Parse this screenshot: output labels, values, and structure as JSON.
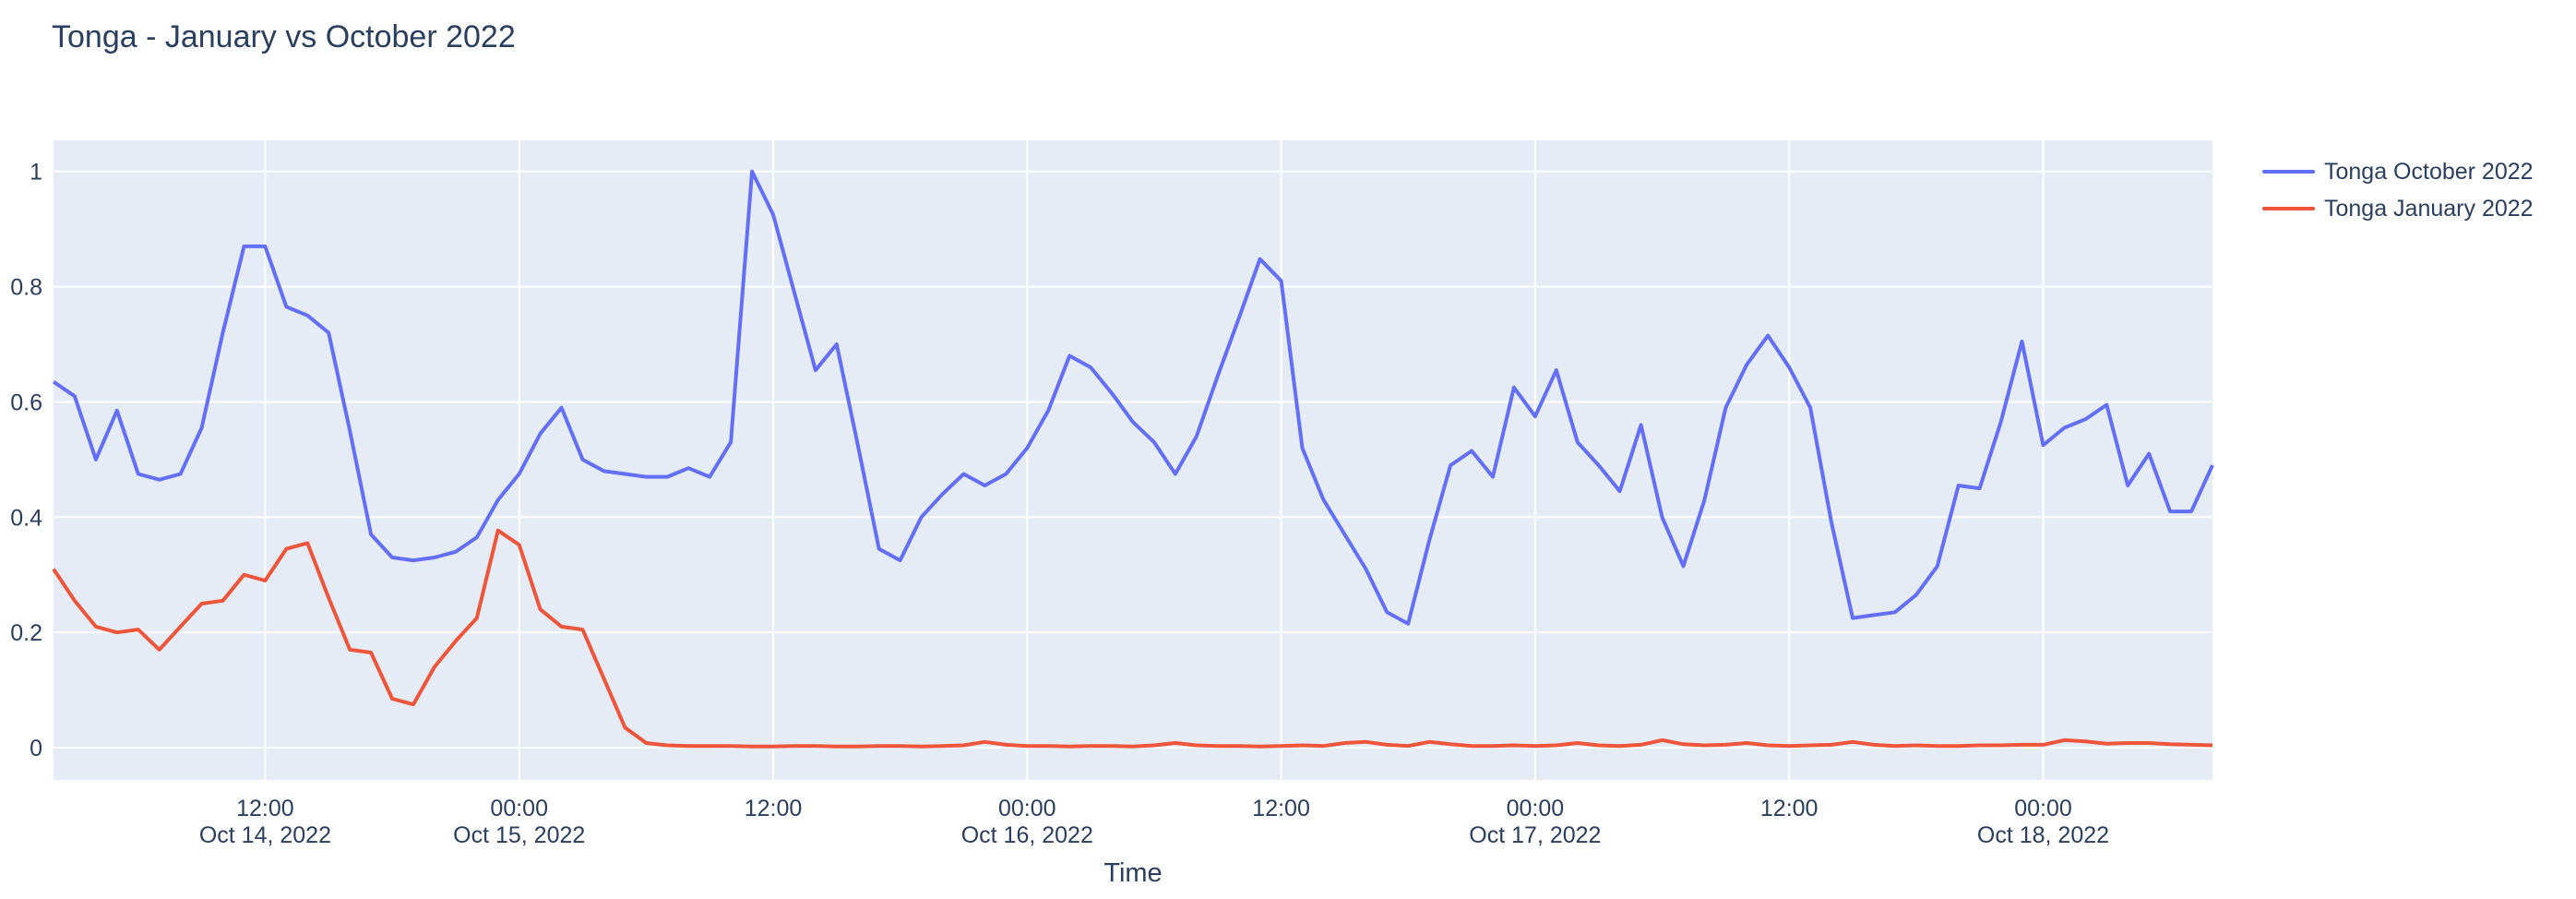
{
  "title": "Tonga - January vs October 2022",
  "colors": {
    "paper_bg": "#ffffff",
    "plot_bg": "#e5ecf6",
    "grid": "#ffffff",
    "text": "#2a3f5f",
    "series_october": "#636efa",
    "series_january": "#ef553b"
  },
  "chart_data": {
    "type": "line",
    "title": "Tonga - January vs October 2022",
    "xlabel": "Time",
    "ylabel": "",
    "x_start": "2022-10-14 02:00",
    "x_step_hours": 1,
    "x_range_hours": [
      0,
      102
    ],
    "ylim": [
      -0.056,
      1.054
    ],
    "grid": true,
    "legend_position": "top-right-outside",
    "y_ticks": [
      {
        "value": 0,
        "label": "0"
      },
      {
        "value": 0.2,
        "label": "0.2"
      },
      {
        "value": 0.4,
        "label": "0.4"
      },
      {
        "value": 0.6,
        "label": "0.6"
      },
      {
        "value": 0.8,
        "label": "0.8"
      },
      {
        "value": 1,
        "label": "1"
      }
    ],
    "x_ticks": [
      {
        "hour": 10,
        "time": "12:00",
        "date": "Oct 14, 2022"
      },
      {
        "hour": 22,
        "time": "00:00",
        "date": "Oct 15, 2022"
      },
      {
        "hour": 34,
        "time": "12:00",
        "date": ""
      },
      {
        "hour": 46,
        "time": "00:00",
        "date": "Oct 16, 2022"
      },
      {
        "hour": 58,
        "time": "12:00",
        "date": ""
      },
      {
        "hour": 70,
        "time": "00:00",
        "date": "Oct 17, 2022"
      },
      {
        "hour": 82,
        "time": "12:00",
        "date": ""
      },
      {
        "hour": 94,
        "time": "00:00",
        "date": "Oct 18, 2022"
      }
    ],
    "series": [
      {
        "name": "Tonga October 2022",
        "color": "#636efa",
        "values": [
          0.635,
          0.61,
          0.5,
          0.585,
          0.475,
          0.465,
          0.475,
          0.555,
          0.72,
          0.87,
          0.87,
          0.765,
          0.75,
          0.72,
          0.55,
          0.37,
          0.33,
          0.325,
          0.33,
          0.34,
          0.365,
          0.43,
          0.475,
          0.545,
          0.59,
          0.5,
          0.48,
          0.475,
          0.47,
          0.47,
          0.485,
          0.47,
          0.53,
          1.0,
          0.925,
          0.79,
          0.655,
          0.7,
          0.525,
          0.345,
          0.325,
          0.4,
          0.44,
          0.475,
          0.455,
          0.475,
          0.52,
          0.585,
          0.68,
          0.66,
          0.615,
          0.565,
          0.53,
          0.475,
          0.54,
          0.645,
          0.745,
          0.848,
          0.81,
          0.52,
          0.43,
          0.37,
          0.31,
          0.235,
          0.215,
          0.36,
          0.49,
          0.515,
          0.47,
          0.625,
          0.575,
          0.655,
          0.53,
          0.49,
          0.445,
          0.56,
          0.4,
          0.315,
          0.43,
          0.59,
          0.665,
          0.715,
          0.66,
          0.59,
          0.39,
          0.225,
          0.23,
          0.235,
          0.265,
          0.315,
          0.455,
          0.45,
          0.565,
          0.705,
          0.525,
          0.555,
          0.57,
          0.595,
          0.455,
          0.51,
          0.41,
          0.41,
          0.49
        ]
      },
      {
        "name": "Tonga January 2022",
        "color": "#ef553b",
        "values": [
          0.31,
          0.255,
          0.21,
          0.2,
          0.205,
          0.17,
          0.21,
          0.25,
          0.255,
          0.3,
          0.29,
          0.345,
          0.355,
          0.26,
          0.17,
          0.165,
          0.085,
          0.075,
          0.14,
          0.185,
          0.225,
          0.377,
          0.352,
          0.24,
          0.21,
          0.205,
          0.12,
          0.035,
          0.008,
          0.004,
          0.003,
          0.003,
          0.003,
          0.002,
          0.002,
          0.003,
          0.003,
          0.002,
          0.002,
          0.003,
          0.003,
          0.002,
          0.003,
          0.004,
          0.01,
          0.005,
          0.003,
          0.003,
          0.002,
          0.003,
          0.003,
          0.002,
          0.004,
          0.008,
          0.004,
          0.003,
          0.003,
          0.002,
          0.003,
          0.004,
          0.003,
          0.008,
          0.01,
          0.005,
          0.003,
          0.01,
          0.006,
          0.003,
          0.003,
          0.004,
          0.003,
          0.004,
          0.008,
          0.004,
          0.003,
          0.005,
          0.013,
          0.006,
          0.004,
          0.005,
          0.008,
          0.004,
          0.003,
          0.004,
          0.005,
          0.01,
          0.005,
          0.003,
          0.004,
          0.003,
          0.003,
          0.004,
          0.004,
          0.005,
          0.005,
          0.013,
          0.011,
          0.007,
          0.008,
          0.008,
          0.006,
          0.005,
          0.004
        ]
      }
    ]
  }
}
